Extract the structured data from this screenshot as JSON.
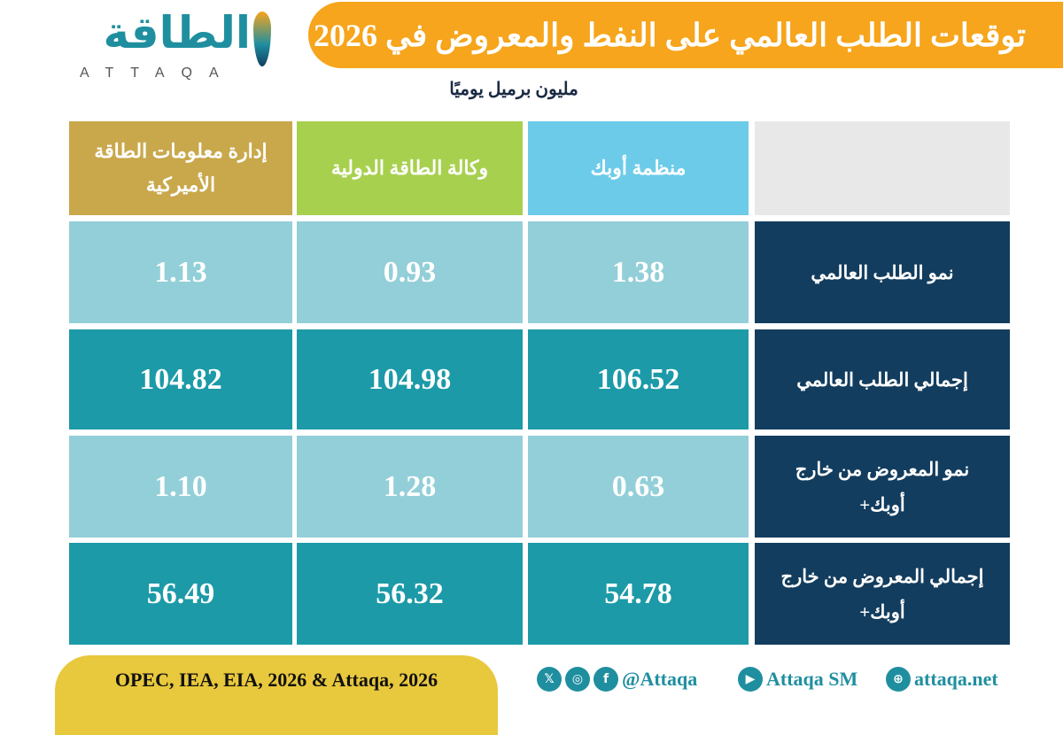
{
  "header": {
    "title": "توقعات الطلب العالمي على النفط والمعروض في 2026",
    "logo_ar": "الطاقة",
    "logo_en": "ATTAQA",
    "unit": "مليون برميل يوميًا"
  },
  "colors": {
    "title_bar": "#f6a51c",
    "eia": "#c9a84c",
    "iea": "#a8d04f",
    "opec": "#6ccbe9",
    "label_cell": "#133d5e",
    "light_row": "#93cfd8",
    "dark_row": "#1c9aa8",
    "footer": "#e8c83d"
  },
  "chart_data": {
    "type": "table",
    "title": "توقعات الطلب العالمي على النفط والمعروض في 2026",
    "unit": "مليون برميل يوميًا",
    "columns": [
      "منظمة أوبك",
      "وكالة الطاقة الدولية",
      "إدارة معلومات الطاقة الأميركية"
    ],
    "rows": [
      {
        "label": "نمو الطلب العالمي",
        "values": [
          "1.38",
          "0.93",
          "1.13"
        ]
      },
      {
        "label": "إجمالي الطلب العالمي",
        "values": [
          "106.52",
          "104.98",
          "104.82"
        ]
      },
      {
        "label": "نمو المعروض من خارج أوبك+",
        "values": [
          "0.63",
          "1.28",
          "1.10"
        ]
      },
      {
        "label": "إجمالي المعروض من خارج أوبك+",
        "values": [
          "54.78",
          "56.32",
          "56.49"
        ]
      }
    ]
  },
  "footer": {
    "sources": "OPEC, IEA, EIA, 2026 & Attaqa, 2026",
    "social_handle": "@Attaqa",
    "youtube": "Attaqa SM",
    "website": "attaqa.net",
    "icons": [
      "x-icon",
      "instagram-icon",
      "facebook-icon",
      "youtube-icon",
      "globe-icon"
    ]
  }
}
